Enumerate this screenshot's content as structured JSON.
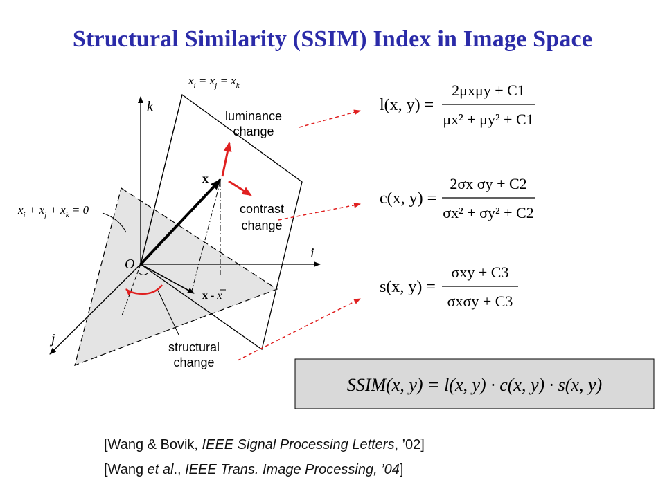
{
  "title": "Structural Similarity (SSIM) Index in Image Space",
  "diagram": {
    "axis_k": "k",
    "axis_i": "i",
    "axis_j": "j",
    "origin": "O",
    "plane_eq_top": {
      "p1": "x",
      "s1": "i",
      "p2": " = x",
      "s2": "j",
      "p3": " = x",
      "s3": "k"
    },
    "plane_eq_left": {
      "p1": "x",
      "s1": "i",
      "p2": " + x",
      "s2": "j",
      "p3": " + x",
      "s3": "k",
      "p4": " = 0"
    },
    "vec_x": "x",
    "vec_xmx": "x - ",
    "vec_xbar": "x",
    "luminance_1": "luminance",
    "luminance_2": "change",
    "contrast_1": "contrast",
    "contrast_2": "change",
    "structural_1": "structural",
    "structural_2": "change"
  },
  "formulas": {
    "l": {
      "lhs": "l(x, y) =",
      "num": "2μxμy + C1",
      "den": "μx² + μy² + C1"
    },
    "c": {
      "lhs": "c(x, y) =",
      "num": "2σx σy + C2",
      "den": "σx² + σy² + C2"
    },
    "s": {
      "lhs": "s(x, y) =",
      "num": "σxy + C3",
      "den": "σxσy + C3"
    },
    "ssim": "SSIM(x, y) = l(x, y) · c(x, y) · s(x, y)"
  },
  "references": {
    "r1_a": "[Wang & Bovik, ",
    "r1_b": "IEEE Signal Processing Letters",
    "r1_c": ", ’02]",
    "r2_a": "[Wang ",
    "r2_b": "et al",
    "r2_c": "., ",
    "r2_d": "IEEE Trans. Image Processing, ’04",
    "r2_e": "]"
  },
  "colors": {
    "title": "#2b2ba8",
    "arrow_red": "#e02020",
    "plane_gray": "#e4e4e4",
    "ssim_box": "#d9d9d9"
  }
}
